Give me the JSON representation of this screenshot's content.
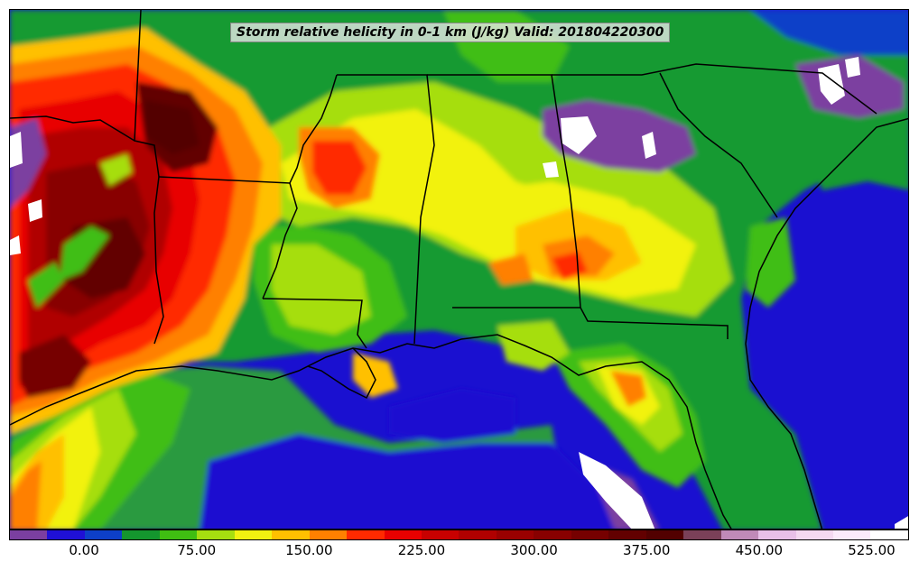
{
  "title": "Storm relative helicity in 0-1 km (J/kg) Valid: 201804220300",
  "colorbar": {
    "colors": [
      "#7b3fa0",
      "#1f10d6",
      "#0d3fc8",
      "#14962e",
      "#3fbe12",
      "#a6de10",
      "#f2f210",
      "#ffc000",
      "#ff8000",
      "#ff2a00",
      "#e80000",
      "#c80000",
      "#b00000",
      "#9a0000",
      "#880000",
      "#760000",
      "#620000",
      "#520000",
      "#7a4058",
      "#c08ab8",
      "#e8c0e8",
      "#f4d8f0",
      "#fbeafa",
      "#ffffff"
    ],
    "tick_labels": [
      {
        "label": "0.00",
        "index": 2
      },
      {
        "label": "75.00",
        "index": 5
      },
      {
        "label": "150.00",
        "index": 8
      },
      {
        "label": "225.00",
        "index": 11
      },
      {
        "label": "300.00",
        "index": 14
      },
      {
        "label": "375.00",
        "index": 17
      },
      {
        "label": "450.00",
        "index": 20
      },
      {
        "label": "525.00",
        "index": 23
      }
    ]
  }
}
